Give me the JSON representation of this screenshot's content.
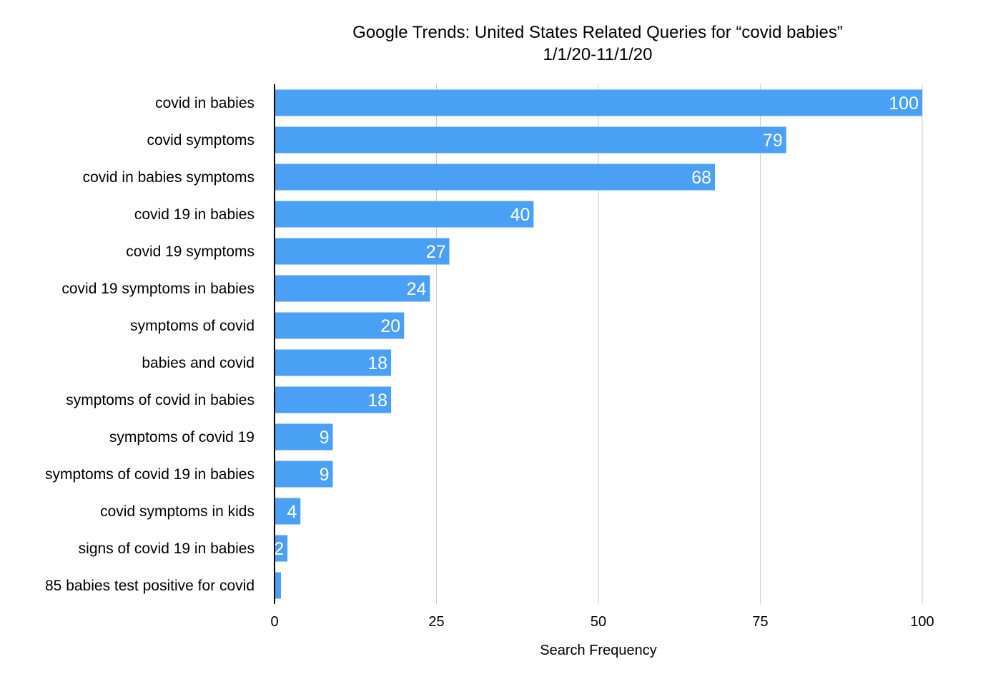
{
  "chart_data": {
    "type": "bar",
    "orientation": "horizontal",
    "title": "Google Trends: United States Related Queries for “covid babies”",
    "subtitle": "1/1/20-11/1/20",
    "xlabel": "Search Frequency",
    "ylabel": "",
    "xlim": [
      0,
      100
    ],
    "xticks": [
      "0",
      "25",
      "50",
      "75",
      "100"
    ],
    "grid": true,
    "categories": [
      "covid in babies",
      "covid symptoms",
      "covid in babies symptoms",
      "covid 19 in babies",
      "covid 19 symptoms",
      "covid 19 symptoms in babies",
      "symptoms of covid",
      "babies and covid",
      "symptoms of covid in babies",
      "symptoms of covid 19",
      "symptoms of covid 19 in babies",
      "covid symptoms in kids",
      "signs of covid 19 in babies",
      "85 babies test positive for covid"
    ],
    "values": [
      100,
      79,
      68,
      40,
      27,
      24,
      20,
      18,
      18,
      9,
      9,
      4,
      2,
      1
    ],
    "data_labels": [
      "100",
      "79",
      "68",
      "40",
      "27",
      "24",
      "20",
      "18",
      "18",
      "9",
      "9",
      "4",
      "2",
      ""
    ],
    "bar_color": "#4aa0f5",
    "label_color": "#ffffff",
    "grid_color": "#c8c8c8",
    "axis_color": "#000000"
  }
}
